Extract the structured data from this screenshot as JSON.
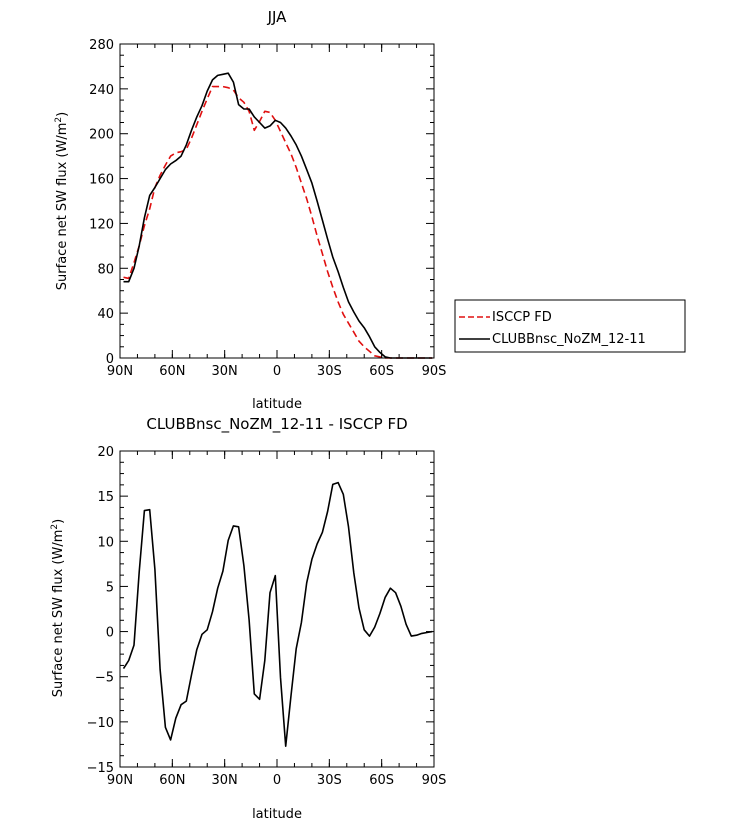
{
  "chart_data": [
    {
      "type": "line",
      "title": "JJA",
      "xlabel": "latitude",
      "ylabel_main": "Surface net SW flux (W/m",
      "ylabel_sup": "2",
      "ylabel_close": ")",
      "xlim": [
        90,
        -90
      ],
      "ylim": [
        0,
        280
      ],
      "x_ticks": [
        {
          "value": 90,
          "label": "90N"
        },
        {
          "value": 60,
          "label": "60N"
        },
        {
          "value": 30,
          "label": "30N"
        },
        {
          "value": 0,
          "label": "0"
        },
        {
          "value": -30,
          "label": "30S"
        },
        {
          "value": -60,
          "label": "60S"
        },
        {
          "value": -90,
          "label": "90S"
        }
      ],
      "y_ticks": [
        0,
        40,
        80,
        120,
        160,
        200,
        240,
        280
      ],
      "grid": false,
      "legend_position": "right",
      "series": [
        {
          "name": "ISCCP FD",
          "color": "#e01010",
          "dash": true,
          "x": [
            88,
            85,
            82,
            79,
            76,
            73,
            70,
            67,
            64,
            61,
            58,
            55,
            52,
            49,
            46,
            43,
            40,
            37,
            34,
            31,
            28,
            25,
            22,
            19,
            16,
            13,
            10,
            7,
            4,
            1,
            -2,
            -5,
            -8,
            -11,
            -14,
            -17,
            -20,
            -23,
            -26,
            -29,
            -32,
            -35,
            -38,
            -41,
            -44,
            -47,
            -50,
            -53,
            -56,
            -59,
            -62,
            -65,
            -68,
            -71,
            -74,
            -77,
            -80,
            -83,
            -86,
            -89
          ],
          "y": [
            72,
            71,
            85,
            100,
            118,
            133,
            152,
            163,
            172,
            180,
            183,
            184,
            186,
            196,
            208,
            220,
            231,
            242,
            242,
            242,
            241,
            239,
            232,
            228,
            220,
            203,
            211,
            220,
            219,
            212,
            202,
            192,
            182,
            170,
            156,
            142,
            126,
            109,
            93,
            77,
            63,
            50,
            39,
            31,
            23,
            15,
            10,
            6,
            2,
            1,
            0,
            0,
            0,
            0,
            0,
            0,
            0,
            0,
            0,
            0
          ]
        },
        {
          "name": "CLUBBnsc_NoZM_12-11",
          "color": "#000000",
          "dash": false,
          "x": [
            88,
            85,
            82,
            79,
            76,
            73,
            70,
            67,
            64,
            61,
            58,
            55,
            52,
            49,
            46,
            43,
            40,
            37,
            34,
            31,
            28,
            25,
            22,
            19,
            16,
            13,
            10,
            7,
            4,
            1,
            -2,
            -5,
            -8,
            -11,
            -14,
            -17,
            -20,
            -23,
            -26,
            -29,
            -32,
            -35,
            -38,
            -41,
            -44,
            -47,
            -50,
            -53,
            -56,
            -59,
            -62,
            -65,
            -68,
            -71,
            -74,
            -77,
            -80,
            -83,
            -86,
            -89
          ],
          "y": [
            68,
            68,
            80,
            100,
            125,
            145,
            152,
            160,
            168,
            173,
            176,
            180,
            190,
            203,
            215,
            225,
            238,
            248,
            252,
            253,
            254,
            246,
            226,
            222,
            222,
            215,
            210,
            205,
            207,
            212,
            210,
            205,
            198,
            190,
            180,
            168,
            156,
            140,
            123,
            106,
            90,
            77,
            63,
            50,
            41,
            33,
            27,
            19,
            10,
            5,
            1,
            0,
            0,
            0,
            0,
            0,
            0,
            0,
            0,
            0
          ]
        }
      ]
    },
    {
      "type": "line",
      "title": "CLUBBnsc_NoZM_12-11 - ISCCP FD",
      "xlabel": "latitude",
      "ylabel_main": "Surface net SW flux (W/m",
      "ylabel_sup": "2",
      "ylabel_close": ")",
      "xlim": [
        90,
        -90
      ],
      "ylim": [
        -15,
        20
      ],
      "x_ticks": [
        {
          "value": 90,
          "label": "90N"
        },
        {
          "value": 60,
          "label": "60N"
        },
        {
          "value": 30,
          "label": "30N"
        },
        {
          "value": 0,
          "label": "0"
        },
        {
          "value": -30,
          "label": "30S"
        },
        {
          "value": -60,
          "label": "60S"
        },
        {
          "value": -90,
          "label": "90S"
        }
      ],
      "y_ticks": [
        -15,
        -10,
        -5,
        0,
        5,
        10,
        15,
        20
      ],
      "grid": false,
      "series": [
        {
          "color": "#000000",
          "dash": false,
          "x": [
            88,
            85,
            82,
            79,
            76,
            73,
            70,
            67,
            64,
            61,
            58,
            55,
            52,
            49,
            46,
            43,
            40,
            37,
            34,
            31,
            28,
            25,
            22,
            19,
            16,
            13,
            10,
            7,
            4,
            1,
            -2,
            -5,
            -8,
            -11,
            -14,
            -17,
            -20,
            -23,
            -26,
            -29,
            -32,
            -35,
            -38,
            -41,
            -44,
            -47,
            -50,
            -53,
            -56,
            -59,
            -62,
            -65,
            -68,
            -71,
            -74,
            -77,
            -80,
            -83,
            -86,
            -89
          ],
          "y": [
            -4.1,
            -3.2,
            -1.5,
            6.6,
            13.4,
            13.5,
            6.9,
            -4.2,
            -10.6,
            -12.0,
            -9.6,
            -8.1,
            -7.7,
            -4.8,
            -2.0,
            -0.3,
            0.2,
            2.2,
            4.8,
            6.7,
            10.1,
            11.7,
            11.6,
            7.3,
            1.3,
            -6.9,
            -7.5,
            -3.2,
            4.3,
            6.2,
            -5.1,
            -12.7,
            -7.1,
            -1.9,
            1.0,
            5.4,
            8.0,
            9.7,
            11.0,
            13.3,
            16.3,
            16.5,
            15.2,
            11.6,
            6.5,
            2.6,
            0.2,
            -0.5,
            0.5,
            2.0,
            3.8,
            4.8,
            4.3,
            2.8,
            0.8,
            -0.5,
            -0.4,
            -0.2,
            -0.1,
            0.0
          ]
        }
      ]
    }
  ]
}
